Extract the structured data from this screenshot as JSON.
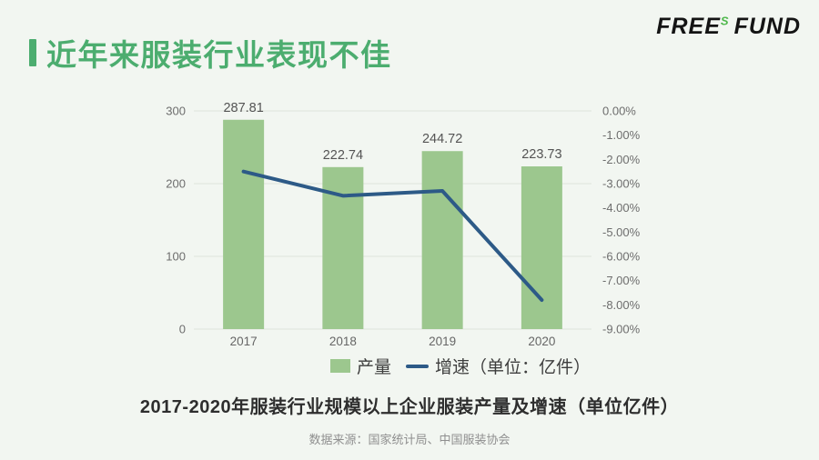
{
  "page": {
    "background": "#F2F6F1"
  },
  "header": {
    "title": "近年来服装行业表现不佳",
    "accent_color": "#4CAD6F"
  },
  "logo": {
    "part1": "FREE",
    "sup": "S",
    "part2": "FUND",
    "sup_color": "#4FB84C"
  },
  "chart_data": {
    "type": "bar+line",
    "categories": [
      "2017",
      "2018",
      "2019",
      "2020"
    ],
    "series": [
      {
        "name": "产量",
        "type": "bar",
        "axis": "left",
        "values": [
          287.81,
          222.74,
          244.72,
          223.73
        ],
        "value_labels": [
          "287.81",
          "222.74",
          "244.72",
          "223.73"
        ],
        "color": "#9CC78E"
      },
      {
        "name": "增速（单位：亿件）",
        "type": "line",
        "axis": "right",
        "values": [
          -2.5,
          -3.5,
          -3.3,
          -7.8
        ],
        "color": "#2D5A87"
      }
    ],
    "left_axis": {
      "min": 0,
      "max": 300,
      "ticks": [
        0,
        100,
        200,
        300
      ]
    },
    "right_axis": {
      "min": -9,
      "max": 0,
      "tick_labels": [
        "0.00%",
        "-1.00%",
        "-2.00%",
        "-3.00%",
        "-4.00%",
        "-5.00%",
        "-6.00%",
        "-7.00%",
        "-8.00%",
        "-9.00%"
      ]
    },
    "grid": "horizontal-on-left-ticks",
    "legend_position": "bottom",
    "title": "",
    "xlabel": "",
    "ylabel": ""
  },
  "caption": {
    "title": "2017-2020年服装行业规模以上企业服装产量及增速（单位亿件）",
    "source": "数据来源：国家统计局、中国服装协会"
  }
}
